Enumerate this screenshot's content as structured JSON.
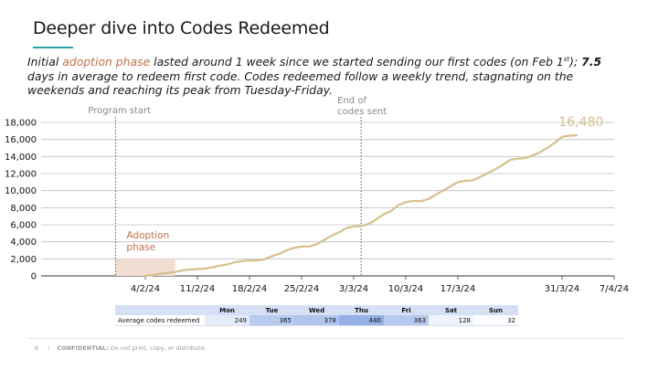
{
  "slide": {
    "title": "Deeper dive into Codes Redeemed",
    "subtitle": {
      "part1": "Initial ",
      "accent": "adoption phase",
      "part2": " lasted around 1 week since we started sending our first codes (on Feb 1",
      "sup": "st",
      "part3": "); ",
      "bold": "7.5",
      "part4": " days in average to redeem first code. Codes redeemed follow a weekly trend, stagnating on the weekends and reaching its peak from Tuesday-Friday."
    }
  },
  "colors": {
    "line": "#d6bf8c",
    "grid": "#bfbfbf",
    "adoption_fill": "#f2ddd2",
    "adoption_text": "#c0724a",
    "accent_teal": "#2aa3a8",
    "table_header": "#d6e0f5"
  },
  "chart_data": {
    "type": "line",
    "x_tick_labels": [
      "4/2/24",
      "11/2/24",
      "18/2/24",
      "25/2/24",
      "3/3/24",
      "10/3/24",
      "17/3/24",
      "31/3/24",
      "7/4/24"
    ],
    "x_tick_days": [
      "2024-02-04",
      "2024-02-11",
      "2024-02-18",
      "2024-02-25",
      "2024-03-03",
      "2024-03-10",
      "2024-03-17",
      "2024-03-31",
      "2024-04-07"
    ],
    "x_range": [
      "2024-01-21",
      "2024-04-07"
    ],
    "ylim": [
      0,
      18000
    ],
    "y_ticks": [
      0,
      2000,
      4000,
      6000,
      8000,
      10000,
      12000,
      14000,
      16000,
      18000
    ],
    "y_tick_labels": [
      "0",
      "2,000",
      "4,000",
      "6,000",
      "8,000",
      "10,000",
      "12,000",
      "14,000",
      "16,000",
      "18,000"
    ],
    "grid": true,
    "series": [
      {
        "x": [
          "2024-02-04",
          "2024-02-05",
          "2024-02-06",
          "2024-02-07",
          "2024-02-08",
          "2024-02-09",
          "2024-02-10",
          "2024-02-11",
          "2024-02-12",
          "2024-02-13",
          "2024-02-14",
          "2024-02-15",
          "2024-02-16",
          "2024-02-17",
          "2024-02-18",
          "2024-02-19",
          "2024-02-20",
          "2024-02-21",
          "2024-02-22",
          "2024-02-23",
          "2024-02-24",
          "2024-02-25",
          "2024-02-26",
          "2024-02-27",
          "2024-02-28",
          "2024-02-29",
          "2024-03-01",
          "2024-03-02",
          "2024-03-03",
          "2024-03-04",
          "2024-03-05",
          "2024-03-06",
          "2024-03-07",
          "2024-03-08",
          "2024-03-09",
          "2024-03-10",
          "2024-03-11",
          "2024-03-12",
          "2024-03-13",
          "2024-03-14",
          "2024-03-15",
          "2024-03-16",
          "2024-03-17",
          "2024-03-18",
          "2024-03-19",
          "2024-03-20",
          "2024-03-21",
          "2024-03-22",
          "2024-03-23",
          "2024-03-24",
          "2024-03-25",
          "2024-03-26",
          "2024-03-27",
          "2024-03-28",
          "2024-03-29",
          "2024-03-30",
          "2024-03-31",
          "2024-04-01",
          "2024-04-02"
        ],
        "y": [
          0,
          100,
          250,
          350,
          450,
          650,
          750,
          800,
          850,
          1000,
          1200,
          1350,
          1600,
          1750,
          1800,
          1800,
          1950,
          2300,
          2600,
          3000,
          3300,
          3450,
          3450,
          3700,
          4200,
          4700,
          5100,
          5600,
          5800,
          5850,
          6100,
          6600,
          7200,
          7600,
          8300,
          8650,
          8800,
          8750,
          9000,
          9500,
          10000,
          10500,
          11000,
          11150,
          11200,
          11600,
          12050,
          12500,
          13000,
          13600,
          13750,
          13800,
          14100,
          14500,
          15000,
          15600,
          16300,
          16450,
          16480
        ]
      }
    ],
    "annotations": [
      {
        "label": "Program start",
        "x": "2024-01-31"
      },
      {
        "label": "End of codes sent",
        "lines": [
          "End of",
          "codes sent"
        ],
        "x": "2024-03-04"
      },
      {
        "label": "16,480",
        "x": "2024-04-02"
      }
    ],
    "shaded_region": {
      "label": "Adoption phase",
      "lines": [
        "Adoption",
        "phase"
      ],
      "x_start": "2024-01-31",
      "x_end": "2024-02-08",
      "y_top": 2000
    }
  },
  "table": {
    "row_label": "Average codes redeemed",
    "days": [
      "Mon",
      "Tue",
      "Wed",
      "Thu",
      "Fri",
      "Sat",
      "Sun"
    ],
    "values": [
      249,
      365,
      378,
      440,
      363,
      128,
      32
    ],
    "cell_colors": [
      "#e4ecfa",
      "#b9cbee",
      "#b1c5ec",
      "#94b0e4",
      "#b7c9ed",
      "#eef3fc",
      "#fbfcff"
    ]
  },
  "footer": {
    "page": "6",
    "confidential": "CONFIDENTIAL:",
    "notice": "Do not print, copy, or distribute."
  }
}
